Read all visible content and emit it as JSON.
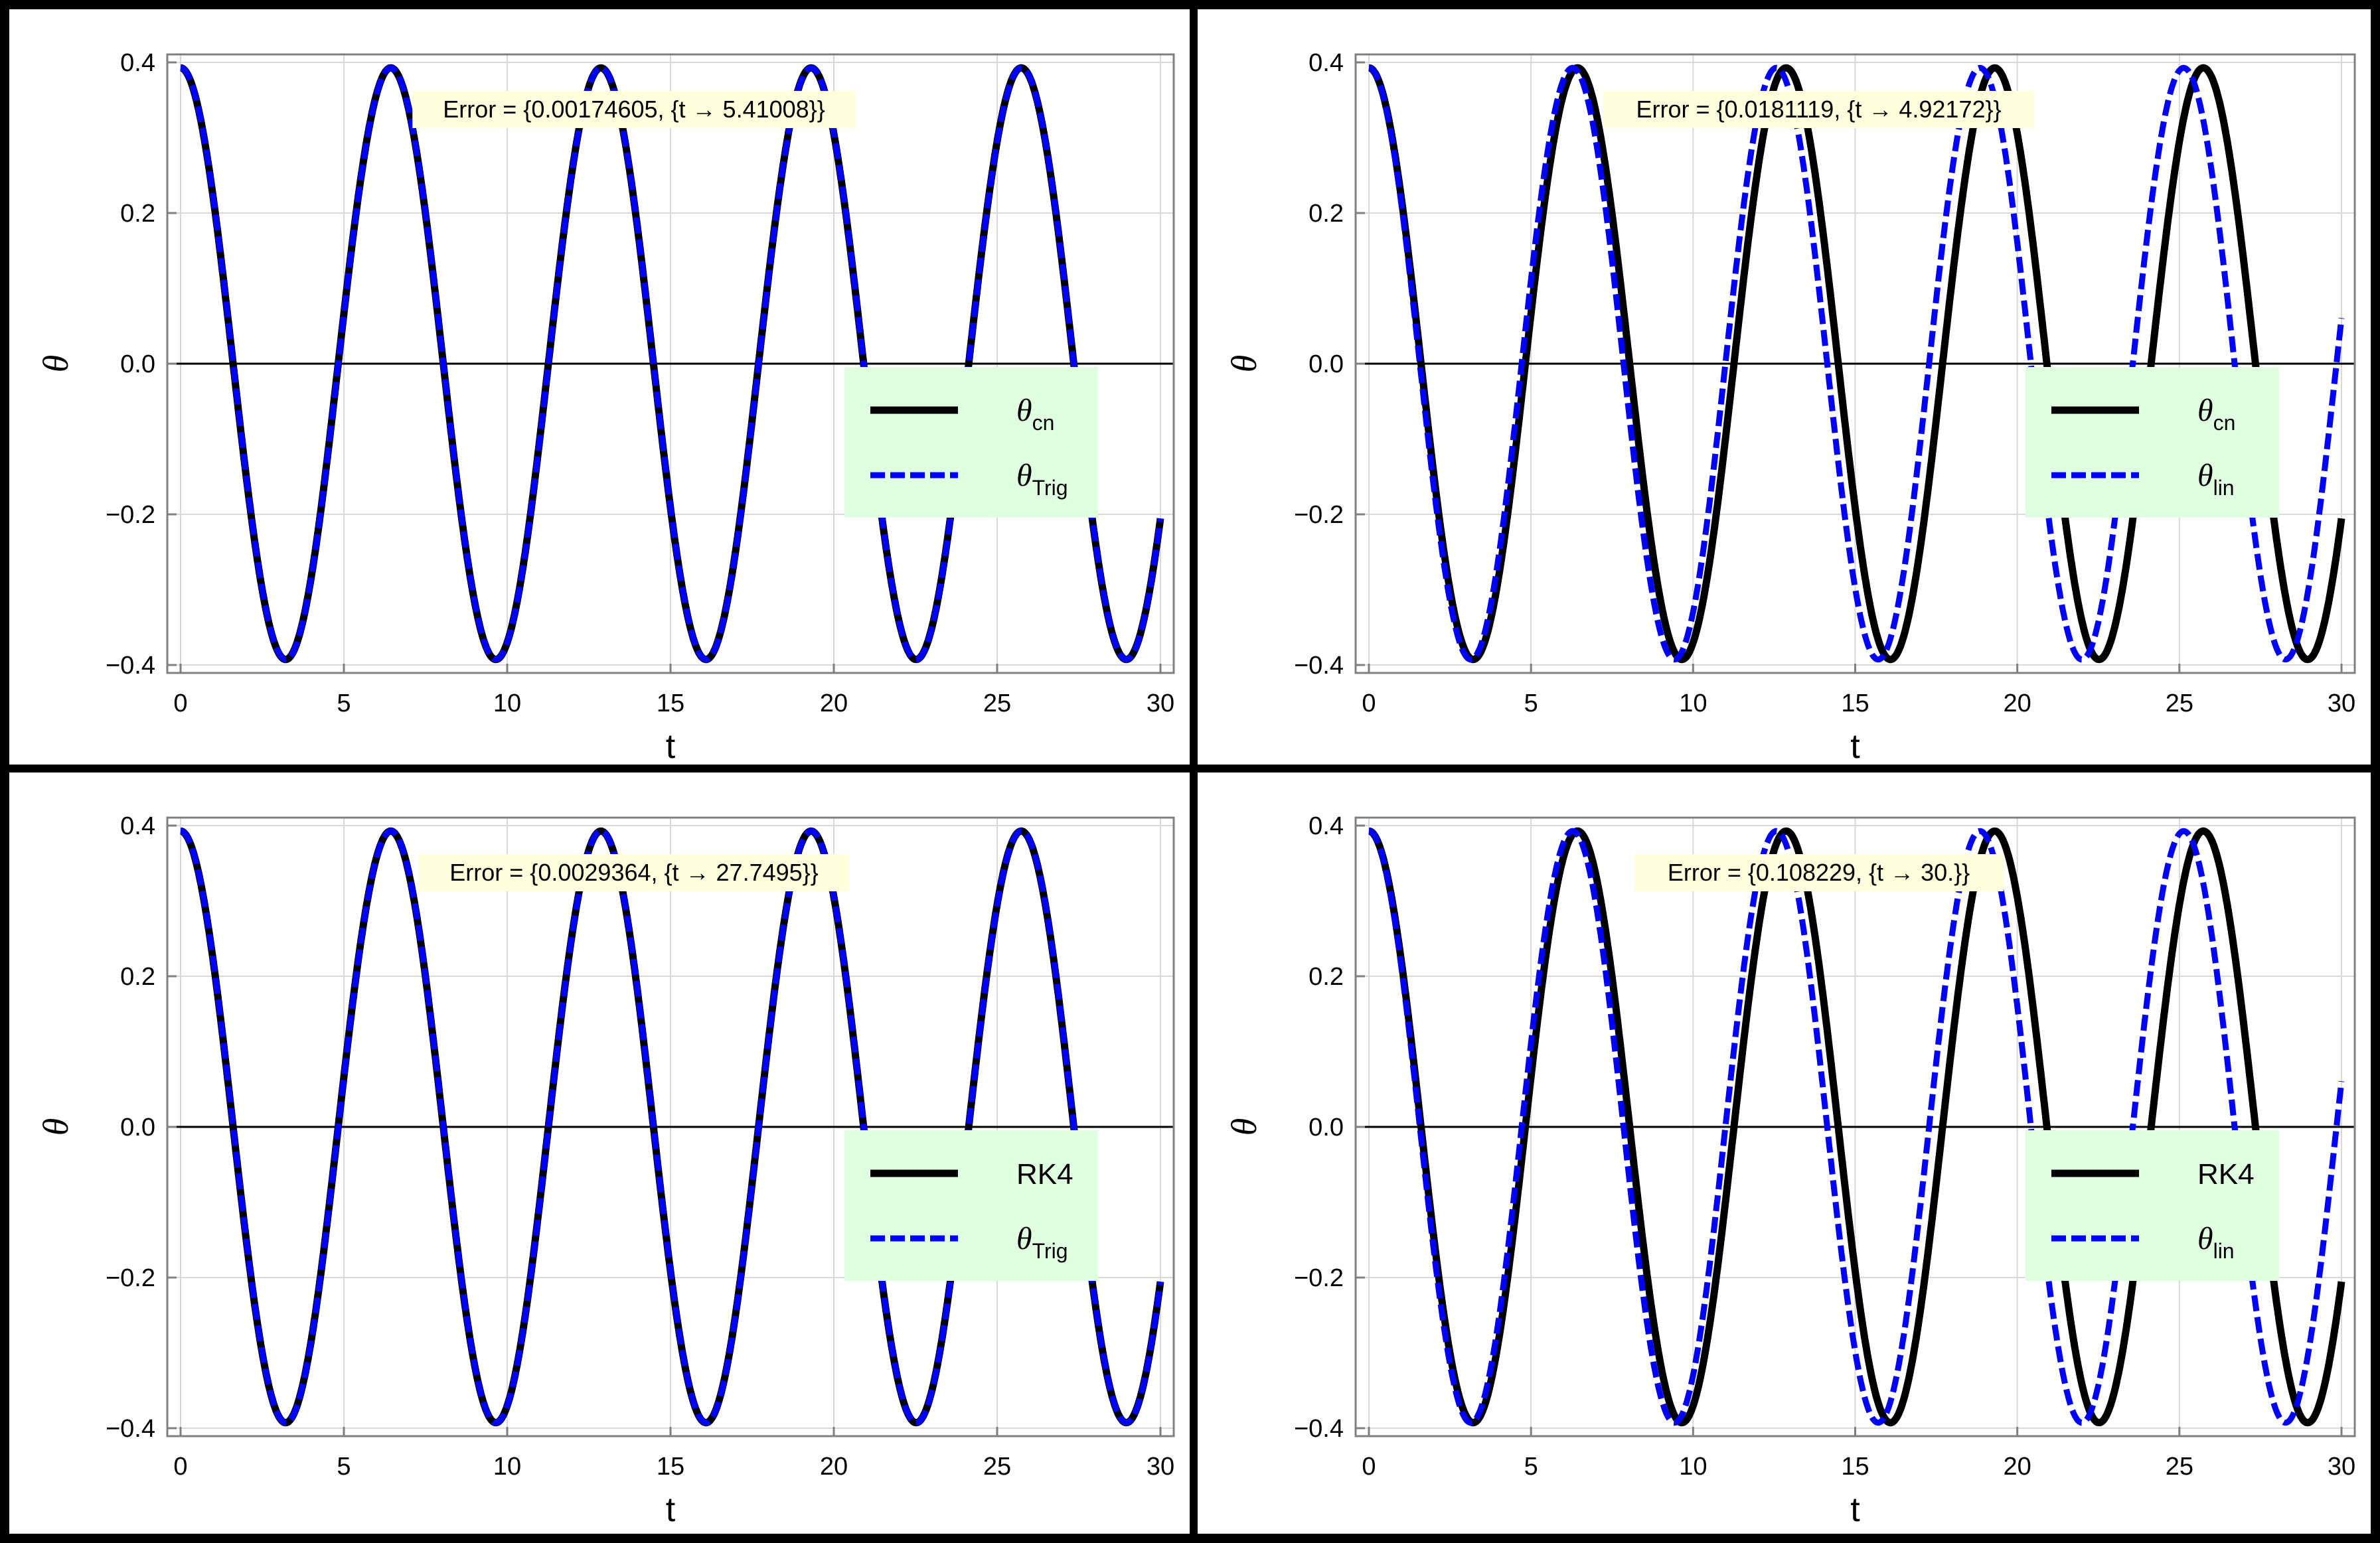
{
  "colors": {
    "cn_line": "#000000",
    "approx_line": "#0000ff",
    "legend_bg": "#e0ffe0",
    "label_bg": "#ffffdd",
    "grid": "#d9d9d9",
    "frame": "#808080"
  },
  "chart_data": [
    {
      "type": "line",
      "xlabel": "t",
      "ylabel": "θ",
      "xlim": [
        0,
        30
      ],
      "ylim": [
        -0.4,
        0.4
      ],
      "xticks": [
        "0",
        "5",
        "10",
        "15",
        "20",
        "25",
        "30"
      ],
      "yticks": [
        "-0.4",
        "-0.2",
        "0.0",
        "0.2",
        "0.4"
      ],
      "grid": true,
      "legend_position": "bottom-right",
      "annotation": "Error = {0.00174605, {t → 5.41008}}",
      "series": [
        {
          "name": "θcn",
          "name_base": "θ",
          "name_sub": "cn",
          "style": "solid",
          "amplitude": 0.3927,
          "period": 6.4345
        },
        {
          "name": "θTrig",
          "name_base": "θ",
          "name_sub": "Trig",
          "style": "dashed",
          "amplitude": 0.3927,
          "period": 6.4345
        }
      ]
    },
    {
      "type": "line",
      "xlabel": "t",
      "ylabel": "θ",
      "xlim": [
        0,
        30
      ],
      "ylim": [
        -0.4,
        0.4
      ],
      "xticks": [
        "0",
        "5",
        "10",
        "15",
        "20",
        "25",
        "30"
      ],
      "yticks": [
        "-0.4",
        "-0.2",
        "0.0",
        "0.2",
        "0.4"
      ],
      "grid": true,
      "legend_position": "bottom-right",
      "annotation": "Error = {0.0181119, {t → 4.92172}}",
      "series": [
        {
          "name": "θcn",
          "name_base": "θ",
          "name_sub": "cn",
          "style": "solid",
          "amplitude": 0.3927,
          "period": 6.4345
        },
        {
          "name": "θlin",
          "name_base": "θ",
          "name_sub": "lin",
          "style": "dashed",
          "amplitude": 0.3927,
          "period": 6.2832
        }
      ]
    },
    {
      "type": "line",
      "xlabel": "t",
      "ylabel": "θ",
      "xlim": [
        0,
        30
      ],
      "ylim": [
        -0.4,
        0.4
      ],
      "xticks": [
        "0",
        "5",
        "10",
        "15",
        "20",
        "25",
        "30"
      ],
      "yticks": [
        "-0.4",
        "-0.2",
        "0.0",
        "0.2",
        "0.4"
      ],
      "grid": true,
      "legend_position": "bottom-right",
      "annotation": "Error = {0.0029364, {t → 27.7495}}",
      "series": [
        {
          "name": "RK4",
          "name_base": "RK4",
          "name_sub": "",
          "style": "solid",
          "amplitude": 0.3927,
          "period": 6.4345
        },
        {
          "name": "θTrig",
          "name_base": "θ",
          "name_sub": "Trig",
          "style": "dashed",
          "amplitude": 0.3927,
          "period": 6.4345
        }
      ]
    },
    {
      "type": "line",
      "xlabel": "t",
      "ylabel": "θ",
      "xlim": [
        0,
        30
      ],
      "ylim": [
        -0.4,
        0.4
      ],
      "xticks": [
        "0",
        "5",
        "10",
        "15",
        "20",
        "25",
        "30"
      ],
      "yticks": [
        "-0.4",
        "-0.2",
        "0.0",
        "0.2",
        "0.4"
      ],
      "grid": true,
      "legend_position": "bottom-right",
      "annotation": "Error = {0.108229, {t → 30.}}",
      "series": [
        {
          "name": "RK4",
          "name_base": "RK4",
          "name_sub": "",
          "style": "solid",
          "amplitude": 0.3927,
          "period": 6.4345
        },
        {
          "name": "θlin",
          "name_base": "θ",
          "name_sub": "lin",
          "style": "dashed",
          "amplitude": 0.3927,
          "period": 6.2832
        }
      ]
    }
  ]
}
